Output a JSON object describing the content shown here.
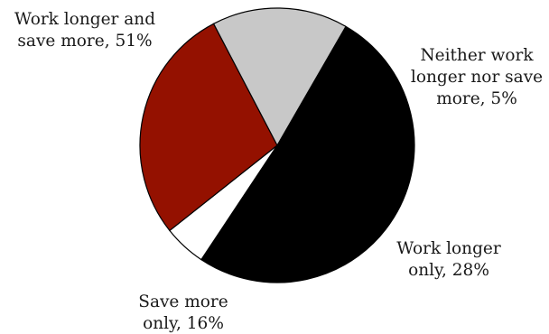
{
  "chart_data": {
    "type": "pie",
    "title": "",
    "slices": [
      {
        "label": [
          "Work longer and",
          "save more, 51%"
        ],
        "value": 51,
        "color": "#000000"
      },
      {
        "label": [
          "Neither work",
          "longer nor save",
          "more, 5%"
        ],
        "value": 5,
        "color": "#ffffff"
      },
      {
        "label": [
          "Work longer",
          "only, 28%"
        ],
        "value": 28,
        "color": "#941100"
      },
      {
        "label": [
          "Save more",
          "only, 16%"
        ],
        "value": 16,
        "color": "#c8c8c8"
      }
    ],
    "legend": "none"
  }
}
